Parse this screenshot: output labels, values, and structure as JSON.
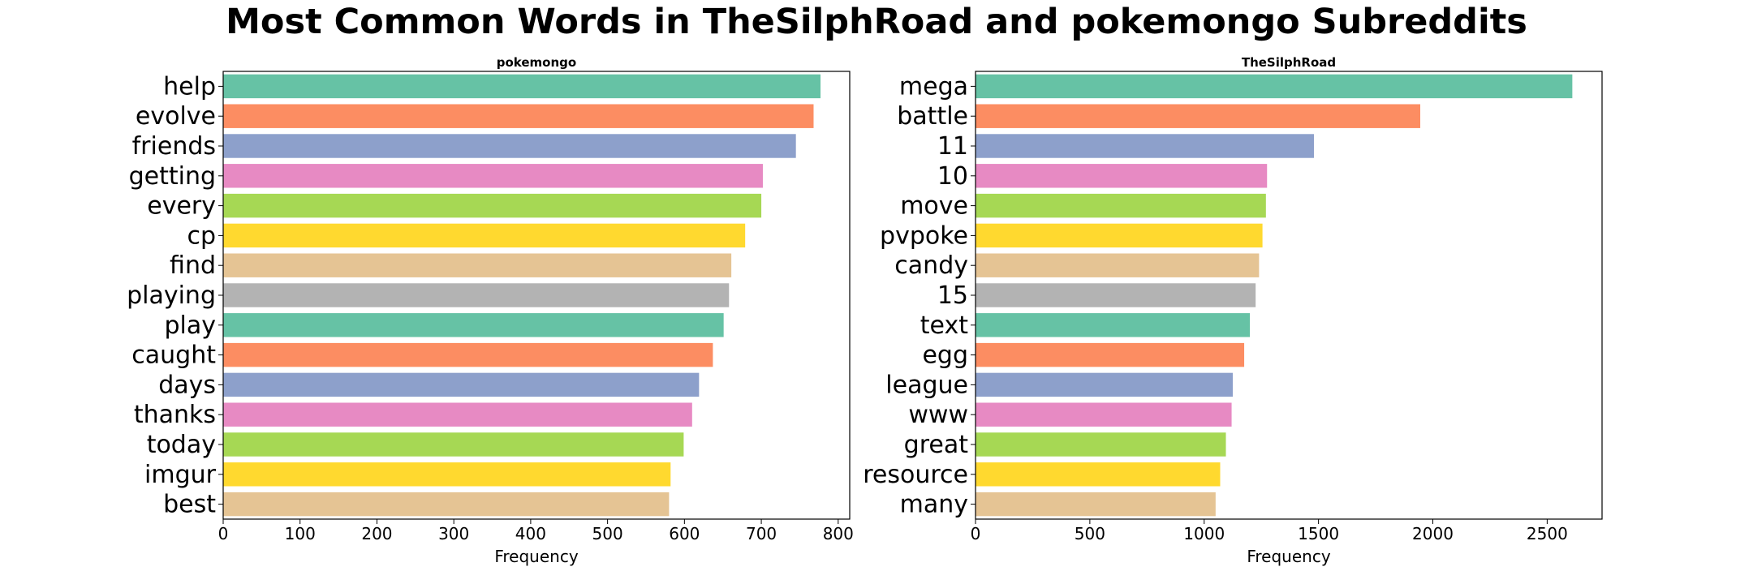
{
  "title": "Most Common Words in TheSilphRoad and pokemongo Subreddits",
  "palette": [
    "#66c2a5",
    "#fc8d62",
    "#8da0cb",
    "#e78ac3",
    "#a6d854",
    "#ffd92f",
    "#e5c494",
    "#b3b3b3"
  ],
  "chart_data": [
    {
      "type": "bar",
      "orientation": "horizontal",
      "title": "pokemongo",
      "xlabel": "Frequency",
      "ylabel": "",
      "xlim": [
        0,
        815
      ],
      "xticks": [
        0,
        100,
        200,
        300,
        400,
        500,
        600,
        700,
        800
      ],
      "categories": [
        "help",
        "evolve",
        "friends",
        "getting",
        "every",
        "cp",
        "find",
        "playing",
        "play",
        "caught",
        "days",
        "thanks",
        "today",
        "imgur",
        "best"
      ],
      "values": [
        777,
        768,
        745,
        702,
        700,
        679,
        661,
        658,
        651,
        637,
        619,
        610,
        599,
        582,
        580
      ],
      "grid": false,
      "legend": "none"
    },
    {
      "type": "bar",
      "orientation": "horizontal",
      "title": "TheSilphRoad",
      "xlabel": "Frequency",
      "ylabel": "",
      "xlim": [
        0,
        2740
      ],
      "xticks": [
        0,
        500,
        1000,
        1500,
        2000,
        2500
      ],
      "categories": [
        "mega",
        "battle",
        "11",
        "10",
        "move",
        "pvpoke",
        "candy",
        "15",
        "text",
        "egg",
        "league",
        "www",
        "great",
        "resource",
        "many"
      ],
      "values": [
        2610,
        1945,
        1480,
        1275,
        1270,
        1255,
        1240,
        1225,
        1200,
        1175,
        1125,
        1120,
        1095,
        1070,
        1050
      ],
      "grid": false,
      "legend": "none"
    }
  ]
}
